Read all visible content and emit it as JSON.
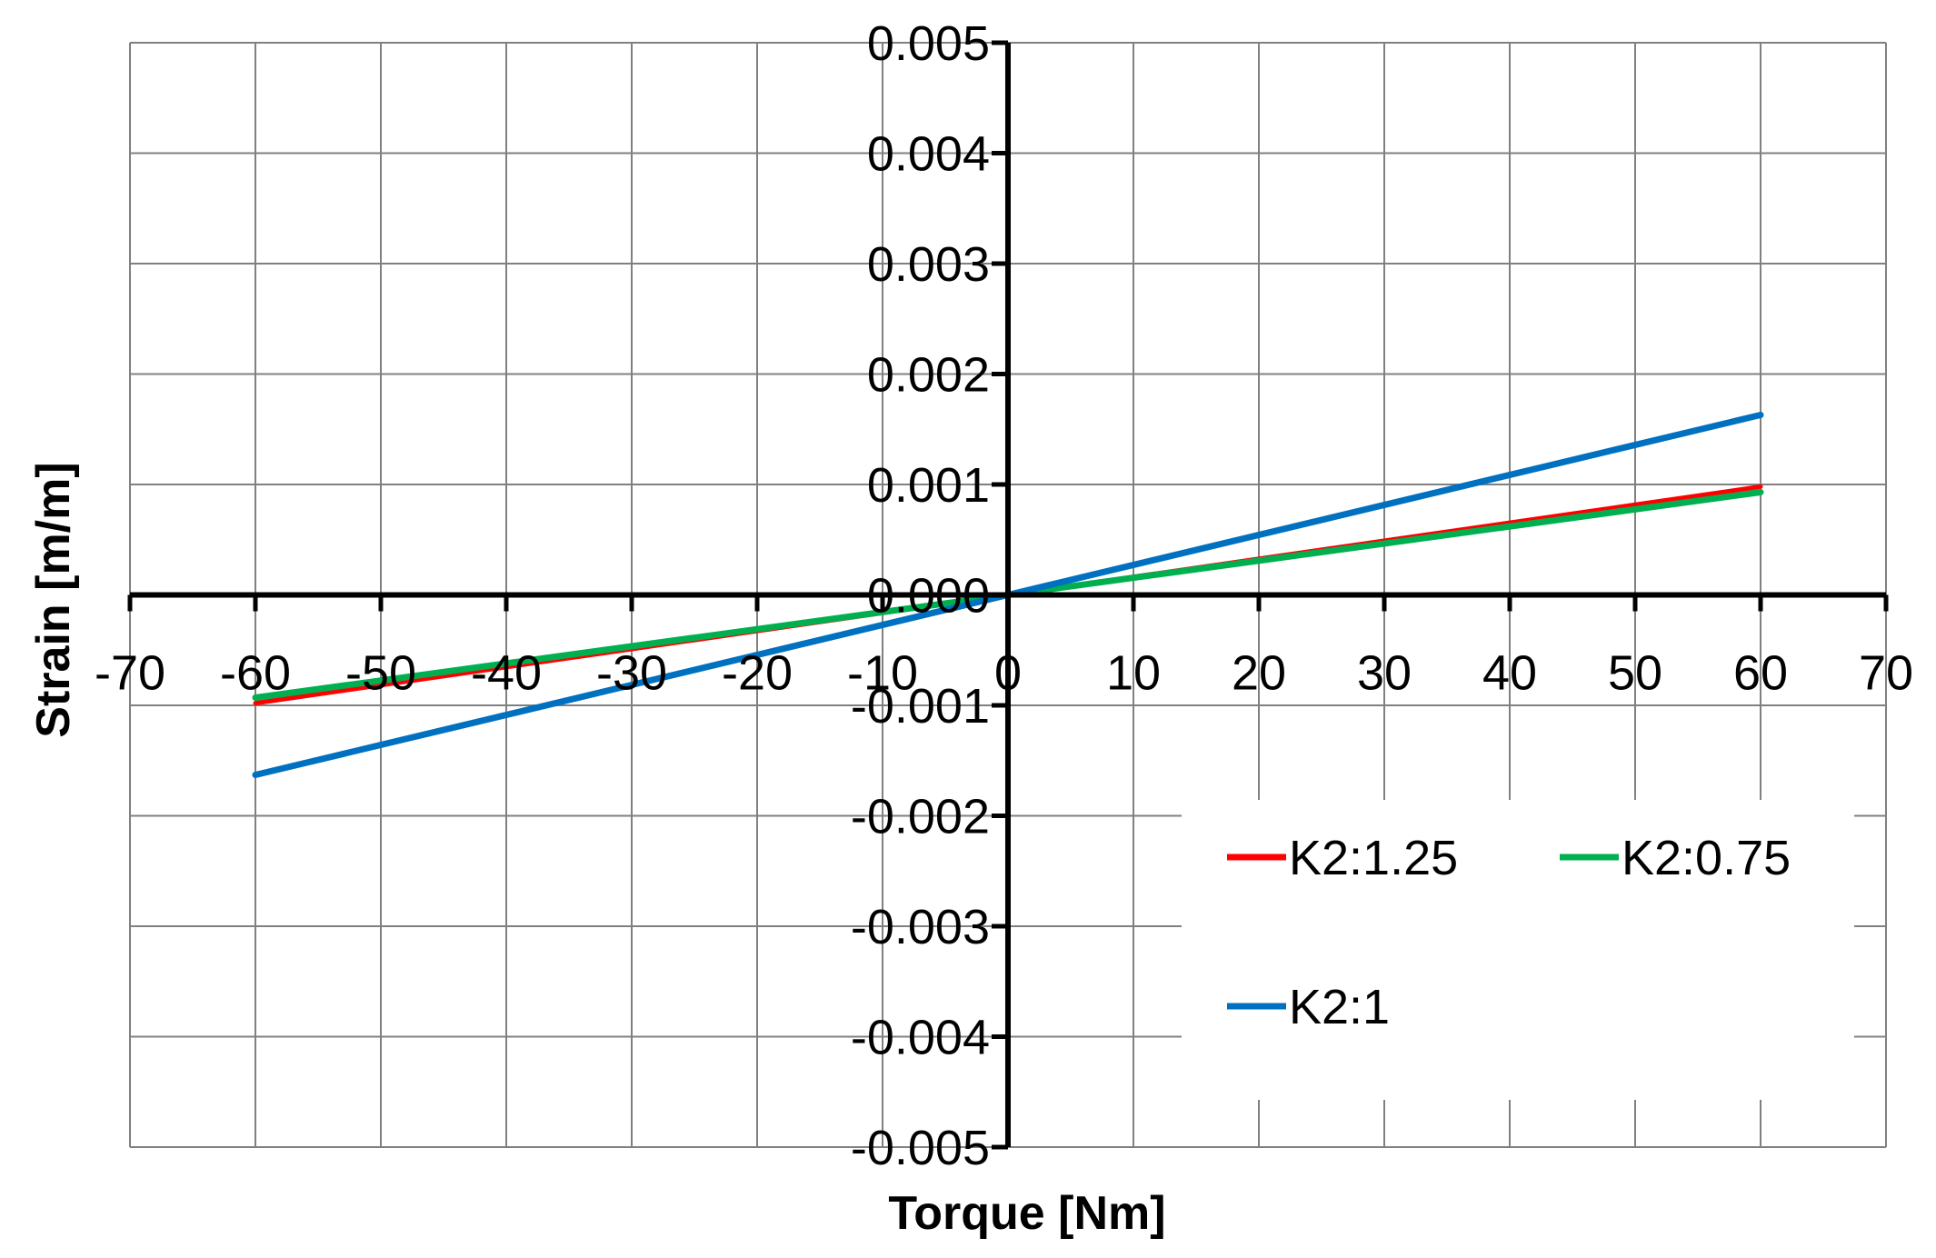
{
  "chart_data": {
    "type": "line",
    "xlabel": "Torque [Nm]",
    "ylabel": "Strain [m/m]",
    "xlim": [
      -70,
      70
    ],
    "ylim": [
      -0.005,
      0.005
    ],
    "xticks": [
      -70,
      -60,
      -50,
      -40,
      -30,
      -20,
      -10,
      0,
      10,
      20,
      30,
      40,
      50,
      60,
      70
    ],
    "xtick_labels": [
      "-70",
      "-60",
      "-50",
      "-40",
      "-30",
      "-20",
      "-10",
      "0",
      "10",
      "20",
      "30",
      "40",
      "50",
      "60",
      "70"
    ],
    "yticks": [
      0.005,
      0.004,
      0.003,
      0.002,
      0.001,
      0,
      -0.001,
      -0.002,
      -0.003,
      -0.004,
      -0.005
    ],
    "ytick_labels": [
      "0.005",
      "0.004",
      "0.003",
      "0.002",
      "0.001",
      "0.000",
      "-0.001",
      "-0.002",
      "-0.003",
      "-0.004",
      "-0.005"
    ],
    "grid": true,
    "legend_position": "bottom-right",
    "series": [
      {
        "name": "K2:1.25",
        "color": "#ff0000",
        "x": [
          -60,
          0,
          60
        ],
        "y": [
          -0.00098,
          0,
          0.00098
        ]
      },
      {
        "name": "K2:0.75",
        "color": "#00b050",
        "x": [
          -60,
          0,
          60
        ],
        "y": [
          -0.00093,
          0,
          0.00093
        ]
      },
      {
        "name": "K2:1",
        "color": "#0070c0",
        "x": [
          -60,
          0,
          60
        ],
        "y": [
          -0.00163,
          0,
          0.00163
        ]
      }
    ]
  }
}
